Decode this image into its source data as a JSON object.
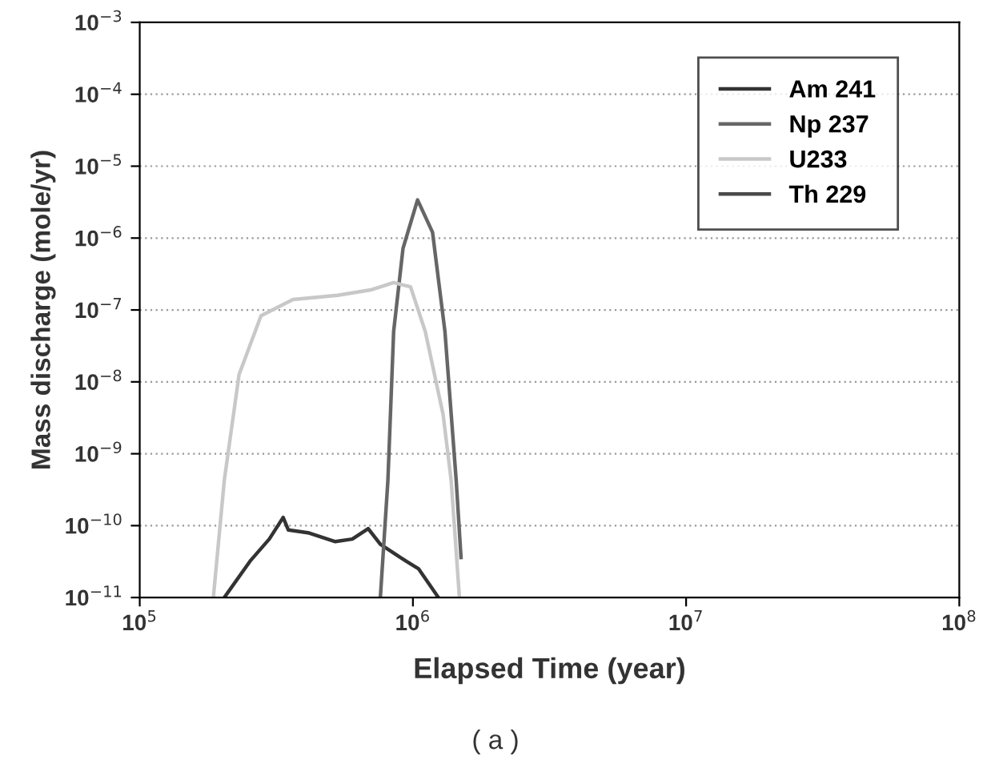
{
  "chart_data": {
    "type": "line",
    "xlabel": "Elapsed Time (year)",
    "ylabel": "Mass discharge (mole/yr)",
    "log": "xy",
    "xlim": [
      100000,
      100000000
    ],
    "ylim": [
      1e-11,
      0.001
    ],
    "xticks": [
      {
        "value": 100000,
        "label": "10$^{5}$"
      },
      {
        "value": 1000000,
        "label": "10$^{6}$"
      },
      {
        "value": 10000000,
        "label": "10$^{7}$"
      },
      {
        "value": 100000000,
        "label": "10$^{8}$"
      }
    ],
    "yticks": [
      {
        "value": 1e-11,
        "label": "10$^{−11}$"
      },
      {
        "value": 1e-10,
        "label": "10$^{−10}$"
      },
      {
        "value": 1e-09,
        "label": "10$^{−9}$"
      },
      {
        "value": 1e-08,
        "label": "10$^{−8}$"
      },
      {
        "value": 1e-07,
        "label": "10$^{−7}$"
      },
      {
        "value": 1e-06,
        "label": "10$^{−6}$"
      },
      {
        "value": 1e-05,
        "label": "10$^{−5}$"
      },
      {
        "value": 0.0001,
        "label": "10$^{−4}$"
      },
      {
        "value": 0.001,
        "label": "10$^{−3}$"
      }
    ],
    "grid": "y",
    "legend": "top right",
    "marker": "none",
    "line_style": "solid",
    "series": [
      {
        "name": "Am 241",
        "color": "#333333",
        "x": [
          204000,
          255000,
          298000,
          335000,
          350000,
          417000,
          520000,
          600000,
          686000,
          760000,
          900000,
          1050000,
          1240000
        ],
        "values": [
          1e-11,
          3.3e-11,
          6.5e-11,
          1.3e-10,
          8.7e-11,
          7.9e-11,
          6e-11,
          6.5e-11,
          9.1e-11,
          5.5e-11,
          3.6e-11,
          2.5e-11,
          1e-11
        ]
      },
      {
        "name": "Np 237",
        "color": "#666666",
        "x": [
          760000,
          810000,
          850000,
          920000,
          1040000,
          1180000,
          1310000,
          1440000,
          1500000
        ],
        "values": [
          1e-11,
          4.3e-10,
          5e-08,
          7.2e-07,
          3.4e-06,
          1.2e-06,
          5e-08,
          4.3e-10,
          3.6e-11
        ]
      },
      {
        "name": "U233",
        "color": "#c8c8c8",
        "x": [
          186000,
          204000,
          231000,
          278000,
          364000,
          530000,
          700000,
          850000,
          980000,
          1110000,
          1290000,
          1380000,
          1480000
        ],
        "values": [
          1e-11,
          4.3e-10,
          1.26e-08,
          8.3e-08,
          1.4e-07,
          1.6e-07,
          1.9e-07,
          2.4e-07,
          2.1e-07,
          5e-08,
          3.5e-09,
          4.3e-10,
          1e-11
        ]
      },
      {
        "name": "Th 229",
        "color": "#4a4a4a"
      }
    ],
    "annotations": [
      "( a )"
    ]
  }
}
